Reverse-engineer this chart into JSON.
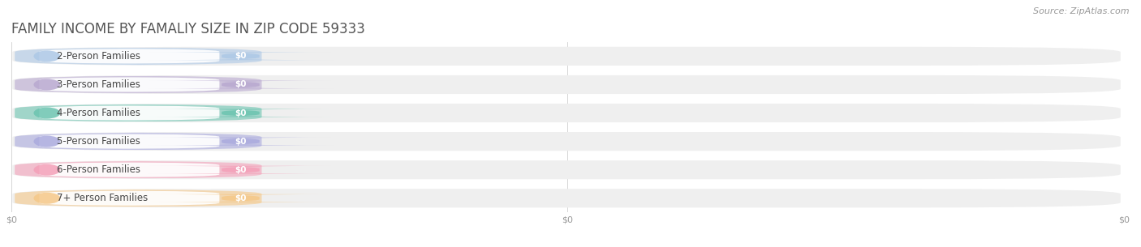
{
  "title": "FAMILY INCOME BY FAMALIY SIZE IN ZIP CODE 59333",
  "source_text": "Source: ZipAtlas.com",
  "categories": [
    "2-Person Families",
    "3-Person Families",
    "4-Person Families",
    "5-Person Families",
    "6-Person Families",
    "7+ Person Families"
  ],
  "values": [
    0,
    0,
    0,
    0,
    0,
    0
  ],
  "bar_colors": [
    "#adc8e6",
    "#b8a8d0",
    "#6cc4b0",
    "#aaaade",
    "#f4a0b8",
    "#f5c888"
  ],
  "value_labels": [
    "$0",
    "$0",
    "$0",
    "$0",
    "$0",
    "$0"
  ],
  "xtick_labels": [
    "$0",
    "$0",
    "$0"
  ],
  "xlim": [
    0,
    1
  ],
  "background_color": "#ffffff",
  "bar_bg_color": "#efefef",
  "title_fontsize": 12,
  "label_fontsize": 8.5,
  "source_fontsize": 8
}
